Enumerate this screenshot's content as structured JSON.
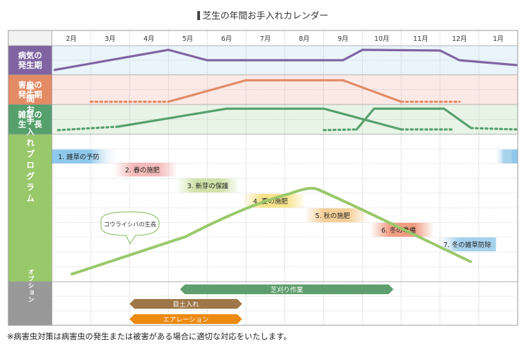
{
  "title": "芝生の年間お手入れカレンダー",
  "months": [
    "2月",
    "3月",
    "4月",
    "5月",
    "6月",
    "7月",
    "8月",
    "9月",
    "10月",
    "11月",
    "12月",
    "1月"
  ],
  "sections": {
    "disease": {
      "label": [
        "病気の",
        "発生期"
      ],
      "color": "#8064a2",
      "band": "#eaf4fb"
    },
    "pest": {
      "label": [
        "害虫の",
        "発生期"
      ],
      "color": "#e38b64",
      "band": "#fbe9e6"
    },
    "weed": {
      "label": [
        "雑草の",
        "生　長"
      ],
      "color": "#55a06c",
      "band": "#e8f4e6"
    },
    "program": {
      "label": "年間お手入れプログラム",
      "color": "#99c86a"
    },
    "option": {
      "label": "オプション",
      "color": "#999999"
    }
  },
  "tasks": [
    {
      "label": "1. 雑草の予防",
      "color": "#8ec8ec"
    },
    {
      "label": "2. 春の施肥",
      "color": "#f4b9b9"
    },
    {
      "label": "3. 新芽の保護",
      "color": "#cfe2a8"
    },
    {
      "label": "4. 夏の施肥",
      "color": "#f6e38c"
    },
    {
      "label": "5. 秋の施肥",
      "color": "#f4cf98"
    },
    {
      "label": "6. 冬の準備",
      "color": "#f19d83"
    },
    {
      "label": "7. 冬の雑草防除",
      "color": "#a6d2ec"
    }
  ],
  "growth_label": "コウライシバの生長",
  "options": [
    {
      "label": "芝刈り作業",
      "color": "#5f9e6e"
    },
    {
      "label": "目土入れ",
      "color": "#9e7749"
    },
    {
      "label": "エアレーション",
      "color": "#ec8a12"
    }
  ],
  "footnote": "※病害虫対策は病害虫の発生または被害がある場合に適切な対応をいたします。"
}
